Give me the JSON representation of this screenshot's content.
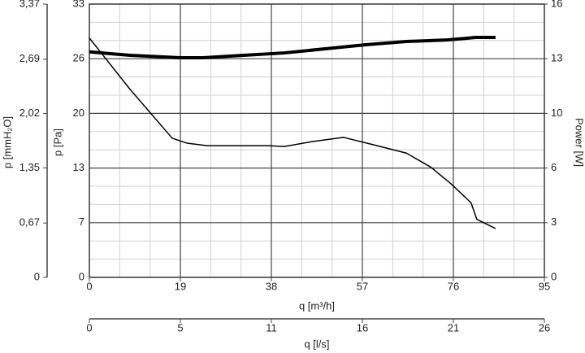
{
  "chart_data": {
    "type": "line",
    "x_label": "q [m³/h]",
    "xlim": [
      0,
      95
    ],
    "xticks": [
      0,
      19,
      38,
      57,
      76,
      95
    ],
    "x2_label": "q [l/s]",
    "x2lim": [
      0,
      26.4
    ],
    "x2ticks": [
      0,
      {
        "value": 5.28,
        "label": "5"
      },
      {
        "value": 10.56,
        "label": "11"
      },
      {
        "value": 15.84,
        "label": "16"
      },
      {
        "value": 21.12,
        "label": "21"
      },
      {
        "value": 26.4,
        "label": "26"
      }
    ],
    "y_label": "p [Pa]",
    "ylim": [
      0,
      33
    ],
    "yticks": [
      0,
      {
        "value": 6.6,
        "label": "7"
      },
      {
        "value": 13.2,
        "label": "13"
      },
      {
        "value": 19.8,
        "label": "20"
      },
      {
        "value": 26.4,
        "label": "26"
      },
      33
    ],
    "y2_label": "Power [W]",
    "y2lim": [
      0,
      16
    ],
    "y2ticks": [
      0,
      {
        "value": 3.2,
        "label": "3"
      },
      {
        "value": 6.4,
        "label": "6"
      },
      {
        "value": 9.6,
        "label": "10"
      },
      {
        "value": 12.8,
        "label": "13"
      },
      16
    ],
    "y3_label": "p [mmH₂O]",
    "y3lim": [
      0,
      3.37
    ],
    "y3ticks": [
      0,
      {
        "value": 0.67,
        "label": "0,67"
      },
      {
        "value": 1.35,
        "label": "1,35"
      },
      {
        "value": 2.02,
        "label": "2,02"
      },
      {
        "value": 2.69,
        "label": "2,69"
      },
      {
        "value": 3.37,
        "label": "3,37"
      }
    ],
    "grid": true,
    "minor_grid": true,
    "series": [
      {
        "color": "#000000",
        "line_width": 1.5,
        "axis": "y",
        "x": [
          0,
          8.5,
          17.3,
          20.4,
          24.6,
          37.3,
          40.7,
          46.6,
          53.1,
          59.4,
          66.2,
          71.3,
          75.5,
          79.7,
          80.9,
          84.8
        ],
        "values": [
          28.9,
          22.7,
          16.8,
          16.2,
          15.9,
          15.9,
          15.8,
          16.4,
          16.9,
          16.0,
          15.0,
          13.3,
          11.3,
          9.0,
          7.0,
          5.9
        ]
      },
      {
        "color": "#000000",
        "line_width": 4,
        "axis": "y2",
        "x": [
          0,
          8.5,
          19,
          23.8,
          32.2,
          40.7,
          49.2,
          57.7,
          66.2,
          74.6,
          78.9,
          80.6,
          84.8
        ],
        "values": [
          13.2,
          13.0,
          12.86,
          12.86,
          13.0,
          13.14,
          13.38,
          13.62,
          13.81,
          13.9,
          14.0,
          14.05,
          14.05
        ]
      }
    ]
  }
}
